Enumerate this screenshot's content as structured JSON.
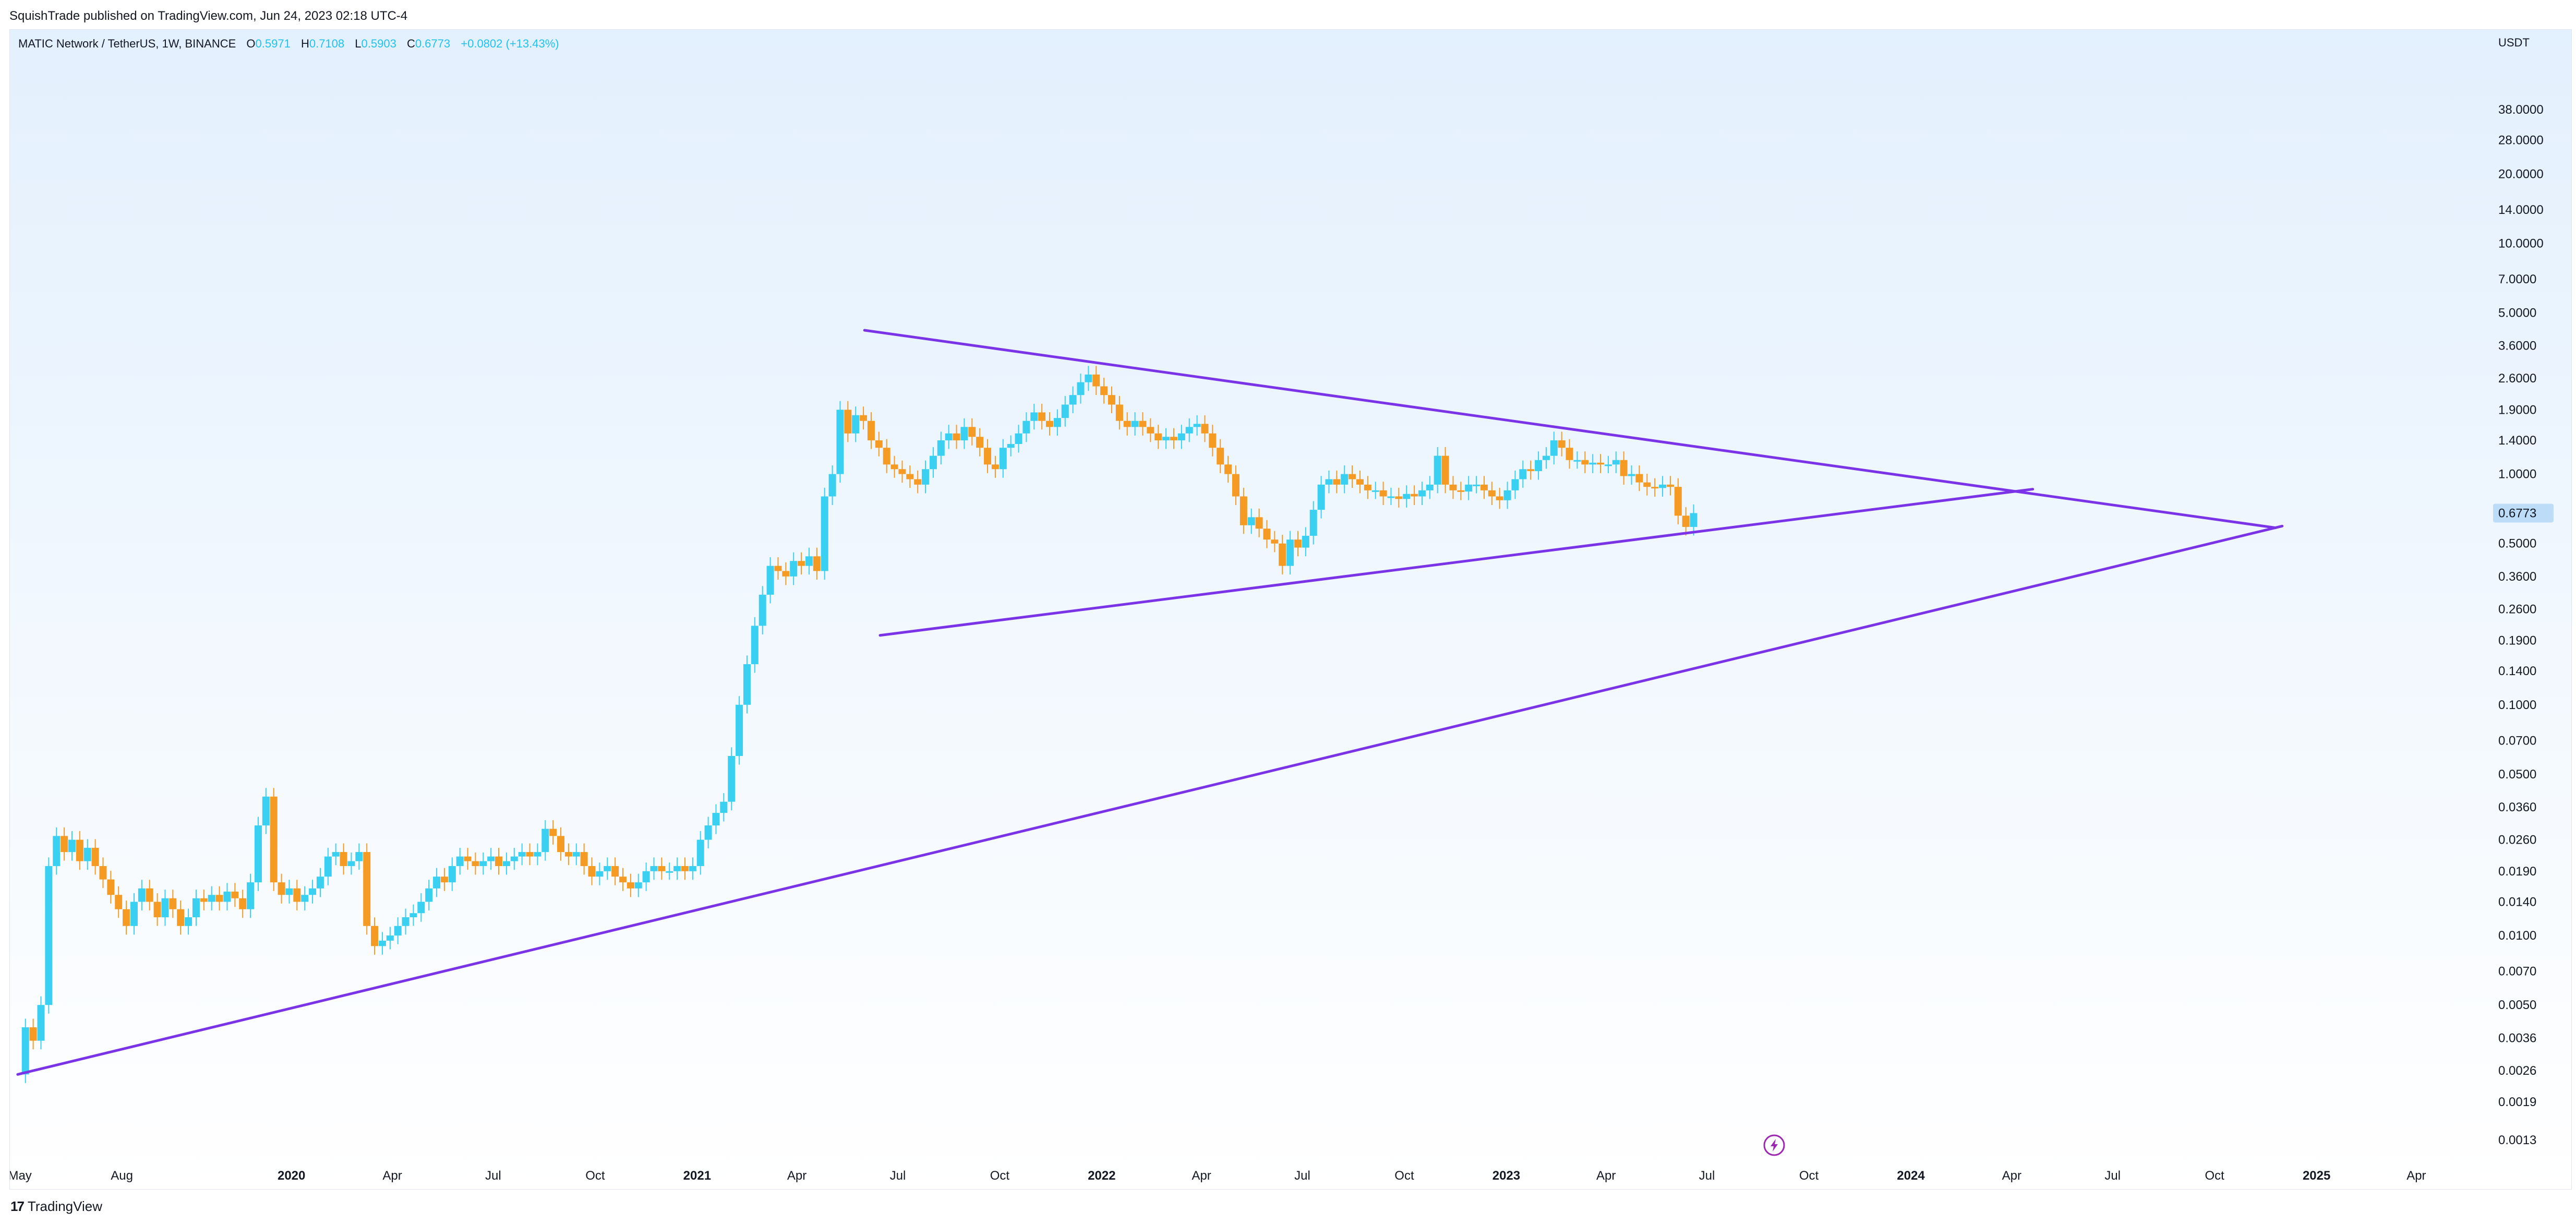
{
  "header": {
    "published_text": "SquishTrade published on TradingView.com, Jun 24, 2023 02:18 UTC-4"
  },
  "legend": {
    "symbol": "MATIC Network / TetherUS, 1W, BINANCE",
    "o_label": "O",
    "o_value": "0.5971",
    "h_label": "H",
    "h_value": "0.7108",
    "l_label": "L",
    "l_value": "0.5903",
    "c_label": "C",
    "c_value": "0.6773",
    "change": "+0.0802 (+13.43%)"
  },
  "footer": {
    "logo_mark": "17",
    "brand": "TradingView"
  },
  "colors": {
    "up": "#3ad0f2",
    "down": "#f59a23",
    "trendline": "#7b33e8",
    "bg_top": "#e3f0fd",
    "bg_bottom": "#ffffff",
    "price_tag": "#bcdcf7"
  },
  "chart_data": {
    "type": "candlestick",
    "symbol": "MATIC Network / TetherUS",
    "timeframe": "1W",
    "exchange": "BINANCE",
    "y_scale": "log",
    "y_currency": "USDT",
    "ylim": [
      0.0011,
      80
    ],
    "y_ticks": [
      "38.0000",
      "28.0000",
      "20.0000",
      "14.0000",
      "10.0000",
      "7.0000",
      "5.0000",
      "3.6000",
      "2.6000",
      "1.9000",
      "1.4000",
      "1.0000",
      "0.7000",
      "0.5000",
      "0.3600",
      "0.2600",
      "0.1900",
      "0.1400",
      "0.1000",
      "0.0700",
      "0.0500",
      "0.0360",
      "0.0260",
      "0.0190",
      "0.0140",
      "0.0100",
      "0.0070",
      "0.0050",
      "0.0036",
      "0.0026",
      "0.0019",
      "0.0013"
    ],
    "x_range": [
      "2019-04-22",
      "2025-05-12"
    ],
    "x_ticks": [
      {
        "label": "May",
        "date": "2019-05-01",
        "bold": false
      },
      {
        "label": "Aug",
        "date": "2019-08-01",
        "bold": false
      },
      {
        "label": "2020",
        "date": "2020-01-01",
        "bold": true
      },
      {
        "label": "Apr",
        "date": "2020-04-01",
        "bold": false
      },
      {
        "label": "Jul",
        "date": "2020-07-01",
        "bold": false
      },
      {
        "label": "Oct",
        "date": "2020-10-01",
        "bold": false
      },
      {
        "label": "2021",
        "date": "2021-01-01",
        "bold": true
      },
      {
        "label": "Apr",
        "date": "2021-04-01",
        "bold": false
      },
      {
        "label": "Jul",
        "date": "2021-07-01",
        "bold": false
      },
      {
        "label": "Oct",
        "date": "2021-10-01",
        "bold": false
      },
      {
        "label": "2022",
        "date": "2022-01-01",
        "bold": true
      },
      {
        "label": "Apr",
        "date": "2022-04-01",
        "bold": false
      },
      {
        "label": "Jul",
        "date": "2022-07-01",
        "bold": false
      },
      {
        "label": "Oct",
        "date": "2022-10-01",
        "bold": false
      },
      {
        "label": "2023",
        "date": "2023-01-01",
        "bold": true
      },
      {
        "label": "Apr",
        "date": "2023-04-01",
        "bold": false
      },
      {
        "label": "Jul",
        "date": "2023-07-01",
        "bold": false
      },
      {
        "label": "Oct",
        "date": "2023-10-01",
        "bold": false
      },
      {
        "label": "2024",
        "date": "2024-01-01",
        "bold": true
      },
      {
        "label": "Apr",
        "date": "2024-04-01",
        "bold": false
      },
      {
        "label": "Jul",
        "date": "2024-07-01",
        "bold": false
      },
      {
        "label": "Oct",
        "date": "2024-10-01",
        "bold": false
      },
      {
        "label": "2025",
        "date": "2025-01-01",
        "bold": true
      },
      {
        "label": "Apr",
        "date": "2025-04-01",
        "bold": false
      }
    ],
    "last_price": "0.6773",
    "price_path": [
      [
        "2019-04-29",
        0.0025
      ],
      [
        "2019-05-06",
        0.004
      ],
      [
        "2019-05-13",
        0.0035
      ],
      [
        "2019-05-20",
        0.005
      ],
      [
        "2019-05-27",
        0.02
      ],
      [
        "2019-06-03",
        0.027
      ],
      [
        "2019-06-10",
        0.023
      ],
      [
        "2019-06-17",
        0.026
      ],
      [
        "2019-06-24",
        0.021
      ],
      [
        "2019-07-01",
        0.024
      ],
      [
        "2019-07-08",
        0.02
      ],
      [
        "2019-07-15",
        0.0175
      ],
      [
        "2019-07-22",
        0.015
      ],
      [
        "2019-07-29",
        0.013
      ],
      [
        "2019-08-05",
        0.011
      ],
      [
        "2019-08-12",
        0.014
      ],
      [
        "2019-08-19",
        0.016
      ],
      [
        "2019-08-26",
        0.014
      ],
      [
        "2019-09-02",
        0.012
      ],
      [
        "2019-09-09",
        0.0145
      ],
      [
        "2019-09-16",
        0.013
      ],
      [
        "2019-09-23",
        0.011
      ],
      [
        "2019-09-30",
        0.012
      ],
      [
        "2019-10-07",
        0.0145
      ],
      [
        "2019-10-14",
        0.014
      ],
      [
        "2019-10-21",
        0.015
      ],
      [
        "2019-10-28",
        0.014
      ],
      [
        "2019-11-04",
        0.0155
      ],
      [
        "2019-11-11",
        0.0145
      ],
      [
        "2019-11-18",
        0.013
      ],
      [
        "2019-11-25",
        0.017
      ],
      [
        "2019-12-02",
        0.03
      ],
      [
        "2019-12-09",
        0.04
      ],
      [
        "2019-12-16",
        0.017
      ],
      [
        "2019-12-23",
        0.015
      ],
      [
        "2019-12-30",
        0.016
      ],
      [
        "2020-01-06",
        0.014
      ],
      [
        "2020-01-13",
        0.015
      ],
      [
        "2020-01-20",
        0.016
      ],
      [
        "2020-01-27",
        0.018
      ],
      [
        "2020-02-03",
        0.022
      ],
      [
        "2020-02-10",
        0.023
      ],
      [
        "2020-02-17",
        0.02
      ],
      [
        "2020-02-24",
        0.021
      ],
      [
        "2020-03-02",
        0.023
      ],
      [
        "2020-03-09",
        0.011
      ],
      [
        "2020-03-16",
        0.009
      ],
      [
        "2020-03-23",
        0.0095
      ],
      [
        "2020-03-30",
        0.01
      ],
      [
        "2020-04-06",
        0.011
      ],
      [
        "2020-04-13",
        0.012
      ],
      [
        "2020-04-20",
        0.0125
      ],
      [
        "2020-04-27",
        0.014
      ],
      [
        "2020-05-04",
        0.016
      ],
      [
        "2020-05-11",
        0.018
      ],
      [
        "2020-05-18",
        0.017
      ],
      [
        "2020-05-25",
        0.02
      ],
      [
        "2020-06-01",
        0.022
      ],
      [
        "2020-06-08",
        0.021
      ],
      [
        "2020-06-15",
        0.02
      ],
      [
        "2020-06-22",
        0.021
      ],
      [
        "2020-06-29",
        0.022
      ],
      [
        "2020-07-06",
        0.02
      ],
      [
        "2020-07-13",
        0.021
      ],
      [
        "2020-07-20",
        0.022
      ],
      [
        "2020-07-27",
        0.023
      ],
      [
        "2020-08-03",
        0.022
      ],
      [
        "2020-08-10",
        0.023
      ],
      [
        "2020-08-17",
        0.029
      ],
      [
        "2020-08-24",
        0.027
      ],
      [
        "2020-08-31",
        0.023
      ],
      [
        "2020-09-07",
        0.022
      ],
      [
        "2020-09-14",
        0.023
      ],
      [
        "2020-09-21",
        0.02
      ],
      [
        "2020-09-28",
        0.018
      ],
      [
        "2020-10-05",
        0.019
      ],
      [
        "2020-10-12",
        0.02
      ],
      [
        "2020-10-19",
        0.018
      ],
      [
        "2020-10-26",
        0.017
      ],
      [
        "2020-11-02",
        0.016
      ],
      [
        "2020-11-09",
        0.017
      ],
      [
        "2020-11-16",
        0.019
      ],
      [
        "2020-11-23",
        0.02
      ],
      [
        "2020-11-30",
        0.019
      ],
      [
        "2020-12-07",
        0.019
      ],
      [
        "2020-12-14",
        0.02
      ],
      [
        "2020-12-21",
        0.019
      ],
      [
        "2020-12-28",
        0.02
      ],
      [
        "2021-01-04",
        0.026
      ],
      [
        "2021-01-11",
        0.03
      ],
      [
        "2021-01-18",
        0.034
      ],
      [
        "2021-01-25",
        0.038
      ],
      [
        "2021-02-01",
        0.06
      ],
      [
        "2021-02-08",
        0.1
      ],
      [
        "2021-02-15",
        0.15
      ],
      [
        "2021-02-22",
        0.22
      ],
      [
        "2021-03-01",
        0.3
      ],
      [
        "2021-03-08",
        0.4
      ],
      [
        "2021-03-15",
        0.38
      ],
      [
        "2021-03-22",
        0.36
      ],
      [
        "2021-03-29",
        0.42
      ],
      [
        "2021-04-05",
        0.4
      ],
      [
        "2021-04-12",
        0.44
      ],
      [
        "2021-04-19",
        0.38
      ],
      [
        "2021-04-26",
        0.8
      ],
      [
        "2021-05-03",
        1.0
      ],
      [
        "2021-05-10",
        1.9
      ],
      [
        "2021-05-17",
        1.5
      ],
      [
        "2021-05-24",
        1.8
      ],
      [
        "2021-05-31",
        1.7
      ],
      [
        "2021-06-07",
        1.4
      ],
      [
        "2021-06-14",
        1.3
      ],
      [
        "2021-06-21",
        1.1
      ],
      [
        "2021-06-28",
        1.05
      ],
      [
        "2021-07-05",
        1.0
      ],
      [
        "2021-07-12",
        0.95
      ],
      [
        "2021-07-19",
        0.9
      ],
      [
        "2021-07-26",
        1.05
      ],
      [
        "2021-08-02",
        1.2
      ],
      [
        "2021-08-09",
        1.4
      ],
      [
        "2021-08-16",
        1.5
      ],
      [
        "2021-08-23",
        1.4
      ],
      [
        "2021-08-30",
        1.6
      ],
      [
        "2021-09-06",
        1.45
      ],
      [
        "2021-09-13",
        1.3
      ],
      [
        "2021-09-20",
        1.1
      ],
      [
        "2021-09-27",
        1.05
      ],
      [
        "2021-10-04",
        1.3
      ],
      [
        "2021-10-11",
        1.35
      ],
      [
        "2021-10-18",
        1.5
      ],
      [
        "2021-10-25",
        1.7
      ],
      [
        "2021-11-01",
        1.85
      ],
      [
        "2021-11-08",
        1.7
      ],
      [
        "2021-11-15",
        1.6
      ],
      [
        "2021-11-22",
        1.75
      ],
      [
        "2021-11-29",
        2.0
      ],
      [
        "2021-12-06",
        2.2
      ],
      [
        "2021-12-13",
        2.5
      ],
      [
        "2021-12-20",
        2.7
      ],
      [
        "2021-12-27",
        2.4
      ],
      [
        "2022-01-03",
        2.2
      ],
      [
        "2022-01-10",
        2.0
      ],
      [
        "2022-01-17",
        1.7
      ],
      [
        "2022-01-24",
        1.6
      ],
      [
        "2022-01-31",
        1.7
      ],
      [
        "2022-02-07",
        1.6
      ],
      [
        "2022-02-14",
        1.5
      ],
      [
        "2022-02-21",
        1.4
      ],
      [
        "2022-02-28",
        1.45
      ],
      [
        "2022-03-07",
        1.4
      ],
      [
        "2022-03-14",
        1.5
      ],
      [
        "2022-03-21",
        1.6
      ],
      [
        "2022-03-28",
        1.65
      ],
      [
        "2022-04-04",
        1.5
      ],
      [
        "2022-04-11",
        1.3
      ],
      [
        "2022-04-18",
        1.1
      ],
      [
        "2022-04-25",
        1.0
      ],
      [
        "2022-05-02",
        0.8
      ],
      [
        "2022-05-09",
        0.6
      ],
      [
        "2022-05-16",
        0.65
      ],
      [
        "2022-05-23",
        0.58
      ],
      [
        "2022-05-30",
        0.52
      ],
      [
        "2022-06-06",
        0.5
      ],
      [
        "2022-06-13",
        0.4
      ],
      [
        "2022-06-20",
        0.52
      ],
      [
        "2022-06-27",
        0.48
      ],
      [
        "2022-07-04",
        0.54
      ],
      [
        "2022-07-11",
        0.7
      ],
      [
        "2022-07-18",
        0.9
      ],
      [
        "2022-07-25",
        0.95
      ],
      [
        "2022-08-01",
        0.9
      ],
      [
        "2022-08-08",
        1.0
      ],
      [
        "2022-08-15",
        0.95
      ],
      [
        "2022-08-22",
        0.9
      ],
      [
        "2022-08-29",
        0.85
      ],
      [
        "2022-09-05",
        0.85
      ],
      [
        "2022-09-12",
        0.8
      ],
      [
        "2022-09-19",
        0.8
      ],
      [
        "2022-09-26",
        0.78
      ],
      [
        "2022-10-03",
        0.82
      ],
      [
        "2022-10-10",
        0.8
      ],
      [
        "2022-10-17",
        0.85
      ],
      [
        "2022-10-24",
        0.9
      ],
      [
        "2022-10-31",
        1.2
      ],
      [
        "2022-11-07",
        0.9
      ],
      [
        "2022-11-14",
        0.85
      ],
      [
        "2022-11-21",
        0.84
      ],
      [
        "2022-11-28",
        0.9
      ],
      [
        "2022-12-05",
        0.9
      ],
      [
        "2022-12-12",
        0.85
      ],
      [
        "2022-12-19",
        0.8
      ],
      [
        "2022-12-26",
        0.77
      ],
      [
        "2023-01-02",
        0.85
      ],
      [
        "2023-01-09",
        0.95
      ],
      [
        "2023-01-16",
        1.05
      ],
      [
        "2023-01-23",
        1.03
      ],
      [
        "2023-01-30",
        1.15
      ],
      [
        "2023-02-06",
        1.2
      ],
      [
        "2023-02-13",
        1.4
      ],
      [
        "2023-02-20",
        1.3
      ],
      [
        "2023-02-27",
        1.15
      ],
      [
        "2023-03-06",
        1.15
      ],
      [
        "2023-03-13",
        1.1
      ],
      [
        "2023-03-20",
        1.12
      ],
      [
        "2023-03-27",
        1.1
      ],
      [
        "2023-04-03",
        1.1
      ],
      [
        "2023-04-10",
        1.15
      ],
      [
        "2023-04-17",
        0.98
      ],
      [
        "2023-04-24",
        1.0
      ],
      [
        "2023-05-01",
        0.92
      ],
      [
        "2023-05-08",
        0.88
      ],
      [
        "2023-05-15",
        0.87
      ],
      [
        "2023-05-22",
        0.9
      ],
      [
        "2023-05-29",
        0.88
      ],
      [
        "2023-06-05",
        0.66
      ],
      [
        "2023-06-12",
        0.59
      ],
      [
        "2023-06-19",
        0.6773
      ]
    ],
    "drawings": [
      {
        "type": "trendline",
        "points": [
          [
            "2019-04-29",
            0.0025
          ],
          [
            "2024-12-01",
            0.595
          ]
        ]
      },
      {
        "type": "trendline",
        "points": [
          [
            "2021-06-01",
            4.2
          ],
          [
            "2024-11-25",
            0.585
          ]
        ]
      },
      {
        "type": "trendline",
        "points": [
          [
            "2021-06-15",
            0.2
          ],
          [
            "2024-04-20",
            0.86
          ]
        ]
      }
    ]
  }
}
